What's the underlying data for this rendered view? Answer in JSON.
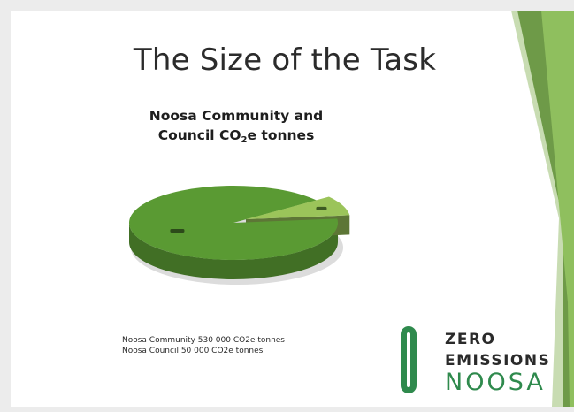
{
  "slide": {
    "title": "The Size of the Task"
  },
  "chart_data": {
    "type": "pie",
    "title_line1": "Noosa Community and",
    "title_line2_pre": "Council CO",
    "title_line2_sub": "2",
    "title_line2_post": "e tonnes",
    "categories": [
      "Noosa Community",
      "Noosa Council"
    ],
    "values": [
      530000,
      50000
    ],
    "unit": "CO2e tonnes",
    "colors": [
      "#5a9a33",
      "#9bc45a"
    ],
    "legend": [
      "Noosa Community 530 000 CO2e tonnes",
      "Noosa Council 50 000 CO2e tonnes"
    ]
  },
  "logo": {
    "line1": "ZERO",
    "line2": "EMISSIONS",
    "line3": "NOOSA"
  },
  "colors": {
    "accent_dark": "#5e8e3e",
    "accent_light": "#8ab860",
    "brand_green": "#2f8a4d"
  }
}
